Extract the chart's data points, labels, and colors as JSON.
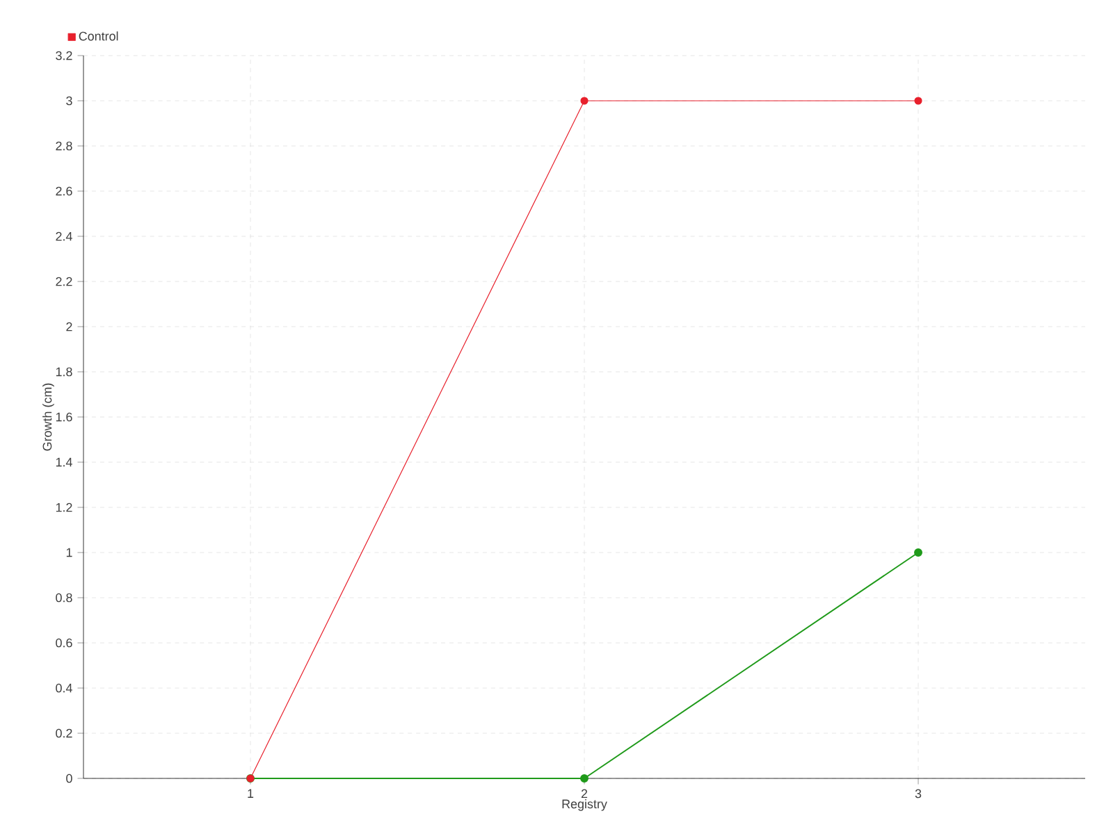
{
  "chart_data": {
    "type": "line",
    "xlabel": "Registry",
    "ylabel": "Growth (cm)",
    "x": [
      1,
      2,
      3
    ],
    "series": [
      {
        "color": "#1f9a1a",
        "values": [
          0,
          0,
          1
        ]
      },
      {
        "name": "Control",
        "color": "#e8202c",
        "values": [
          0,
          3,
          3
        ]
      }
    ],
    "xlim": [
      0.5,
      3.5
    ],
    "xticks": [
      1,
      2,
      3
    ],
    "ylim": [
      0,
      3.2
    ],
    "yticks": [
      0,
      0.2,
      0.4,
      0.6,
      0.8,
      1,
      1.2,
      1.4,
      1.6,
      1.8,
      2,
      2.2,
      2.4,
      2.6,
      2.8,
      3,
      3.2
    ],
    "grid": true,
    "legend": "top left",
    "marker": "circle"
  }
}
